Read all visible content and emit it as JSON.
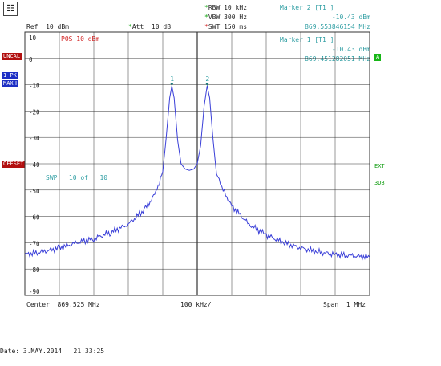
{
  "header": {
    "logo_glyph": "☷",
    "ref_label": "Ref",
    "ref_value": "10 dBm",
    "att_label": "Att",
    "att_value": "10 dB",
    "rbw_label": "RBW",
    "rbw_value": "10 kHz",
    "vbw_label": "VBW",
    "vbw_value": "300 Hz",
    "swt_label": "SWT",
    "swt_value": "150 ms"
  },
  "markers": [
    {
      "title": "Marker 2 [T1 ]",
      "level": "-10.43 dBm",
      "freq": "869.553846154 MHz"
    },
    {
      "title": "Marker 1 [T1 ]",
      "level": "-10.43 dBm",
      "freq": "869.451282051 MHz"
    }
  ],
  "plot_labels": {
    "pos": "POS 10 dBm",
    "swp": "SWP",
    "swp_count": "10 of",
    "swp_total": "10"
  },
  "side_badges": {
    "uncal": "UNCAL",
    "trace": "1 PK",
    "mode": "MAXH",
    "offset": "OFFSET",
    "a": "A",
    "ext": "EXT",
    "db": "3DB"
  },
  "footer": {
    "center_label": "Center",
    "center_value": "869.525 MHz",
    "div_value": "100 kHz/",
    "span_label": "Span",
    "span_value": "1 MHz",
    "date_label": "Date:",
    "date_value": "3.MAY.2014",
    "time_value": "21:33:25"
  },
  "colors": {
    "trace": "#3a3fd8",
    "grid": "#333333",
    "teal": "#2f9ea3",
    "red": "#d12020",
    "green": "#18a018",
    "marker": "#1e7a7a"
  },
  "chart_data": {
    "type": "line",
    "xlabel": "",
    "ylabel": "",
    "x_unit": "MHz",
    "y_unit": "dBm",
    "xlim": [
      869.025,
      870.025
    ],
    "ylim": [
      -90,
      10
    ],
    "y_ticks": [
      10,
      0,
      -10,
      -20,
      -30,
      -40,
      -50,
      -60,
      -70,
      -80,
      -90
    ],
    "grid": true,
    "series": [
      {
        "x": [
          869.025,
          869.075,
          869.125,
          869.175,
          869.225,
          869.275,
          869.325,
          869.375,
          869.405,
          869.425,
          869.435,
          869.445,
          869.4513,
          869.458,
          869.468,
          869.478,
          869.49,
          869.502,
          869.515,
          869.525,
          869.535,
          869.545,
          869.5538,
          869.561,
          869.571,
          869.581,
          869.6,
          869.625,
          869.675,
          869.725,
          869.775,
          869.825,
          869.875,
          869.925,
          869.975,
          870.025
        ],
        "y": [
          -74.5,
          -73.5,
          -72,
          -70,
          -68.5,
          -66,
          -63,
          -57,
          -51,
          -43,
          -30,
          -15,
          -10.43,
          -15,
          -31,
          -40,
          -42,
          -42.5,
          -42,
          -40,
          -33,
          -18,
          -10.43,
          -15,
          -31,
          -44,
          -50,
          -56,
          -63,
          -67,
          -70,
          -72,
          -73.5,
          -74.5,
          -75,
          -75.5
        ]
      }
    ],
    "markers": [
      {
        "label": "1",
        "x": 869.451282051,
        "y": -10.43
      },
      {
        "label": "2",
        "x": 869.553846154,
        "y": -10.43
      }
    ]
  }
}
